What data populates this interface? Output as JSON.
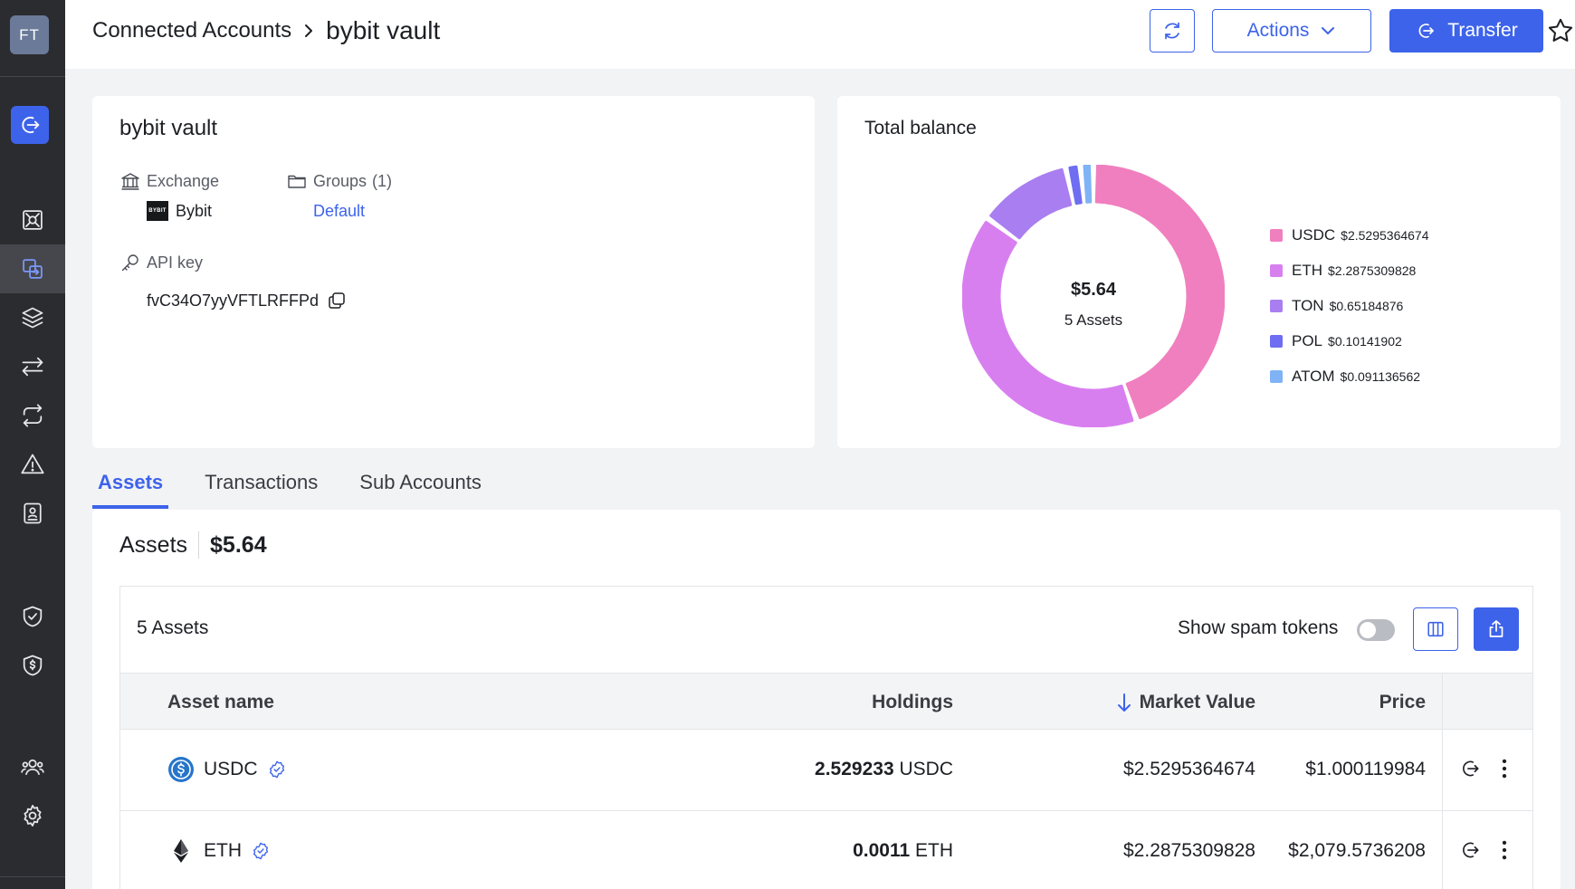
{
  "sidebar": {
    "avatar_initials": "FT",
    "items": [
      {
        "icon": "transfer-icon"
      },
      {
        "icon": "vault-icon"
      },
      {
        "icon": "connected-accounts-icon"
      },
      {
        "icon": "layers-icon"
      },
      {
        "icon": "swap-arrows-icon"
      },
      {
        "icon": "repeat-icon"
      },
      {
        "icon": "warning-icon"
      },
      {
        "icon": "address-book-icon"
      },
      {
        "icon": "shield-check-icon"
      },
      {
        "icon": "shield-dollar-icon"
      },
      {
        "icon": "users-icon"
      },
      {
        "icon": "gear-icon"
      }
    ]
  },
  "header": {
    "breadcrumb_parent": "Connected Accounts",
    "breadcrumb_current": "bybit vault",
    "actions_label": "Actions",
    "transfer_label": "Transfer"
  },
  "account": {
    "title": "bybit vault",
    "exchange_label": "Exchange",
    "exchange_value": "Bybit",
    "bybit_logo_text": "BYBIT",
    "groups_label": "Groups",
    "groups_count": "(1)",
    "groups_value": "Default",
    "api_key_label": "API key",
    "api_key_value": "fvC34O7yyVFTLRFFPd"
  },
  "balance": {
    "title": "Total balance",
    "total": "$5.64",
    "assets_count": "5 Assets",
    "legend": [
      {
        "name": "USDC",
        "value": "$2.5295364674",
        "color": "#f07fbf"
      },
      {
        "name": "ETH",
        "value": "$2.2875309828",
        "color": "#d87ff0"
      },
      {
        "name": "TON",
        "value": "$0.65184876",
        "color": "#a97ef0"
      },
      {
        "name": "POL",
        "value": "$0.10141902",
        "color": "#6f6ef2"
      },
      {
        "name": "ATOM",
        "value": "$0.091136562",
        "color": "#7fb3f5"
      }
    ]
  },
  "chart_data": {
    "type": "pie",
    "categories": [
      "USDC",
      "ETH",
      "TON",
      "POL",
      "ATOM"
    ],
    "values": [
      2.5295364674,
      2.2875309828,
      0.65184876,
      0.10141902,
      0.091136562
    ],
    "title": "Total balance",
    "center_label": "$5.64",
    "center_sublabel": "5 Assets",
    "legend_position": "right"
  },
  "tabs": [
    {
      "label": "Assets",
      "active": true
    },
    {
      "label": "Transactions",
      "active": false
    },
    {
      "label": "Sub Accounts",
      "active": false
    }
  ],
  "assets": {
    "heading": "Assets",
    "total": "$5.64",
    "count_label": "5 Assets",
    "spam_label": "Show spam tokens",
    "spam_enabled": false,
    "columns": {
      "name": "Asset name",
      "holdings": "Holdings",
      "market_value": "Market Value",
      "price": "Price"
    },
    "rows": [
      {
        "name": "USDC",
        "holding_amount": "2.529233",
        "holding_unit": "USDC",
        "market_value": "$2.5295364674",
        "price": "$1.000119984",
        "icon": "usdc-coin-icon"
      },
      {
        "name": "ETH",
        "holding_amount": "0.0011",
        "holding_unit": "ETH",
        "market_value": "$2.2875309828",
        "price": "$2,079.5736208",
        "icon": "eth-coin-icon"
      }
    ]
  }
}
